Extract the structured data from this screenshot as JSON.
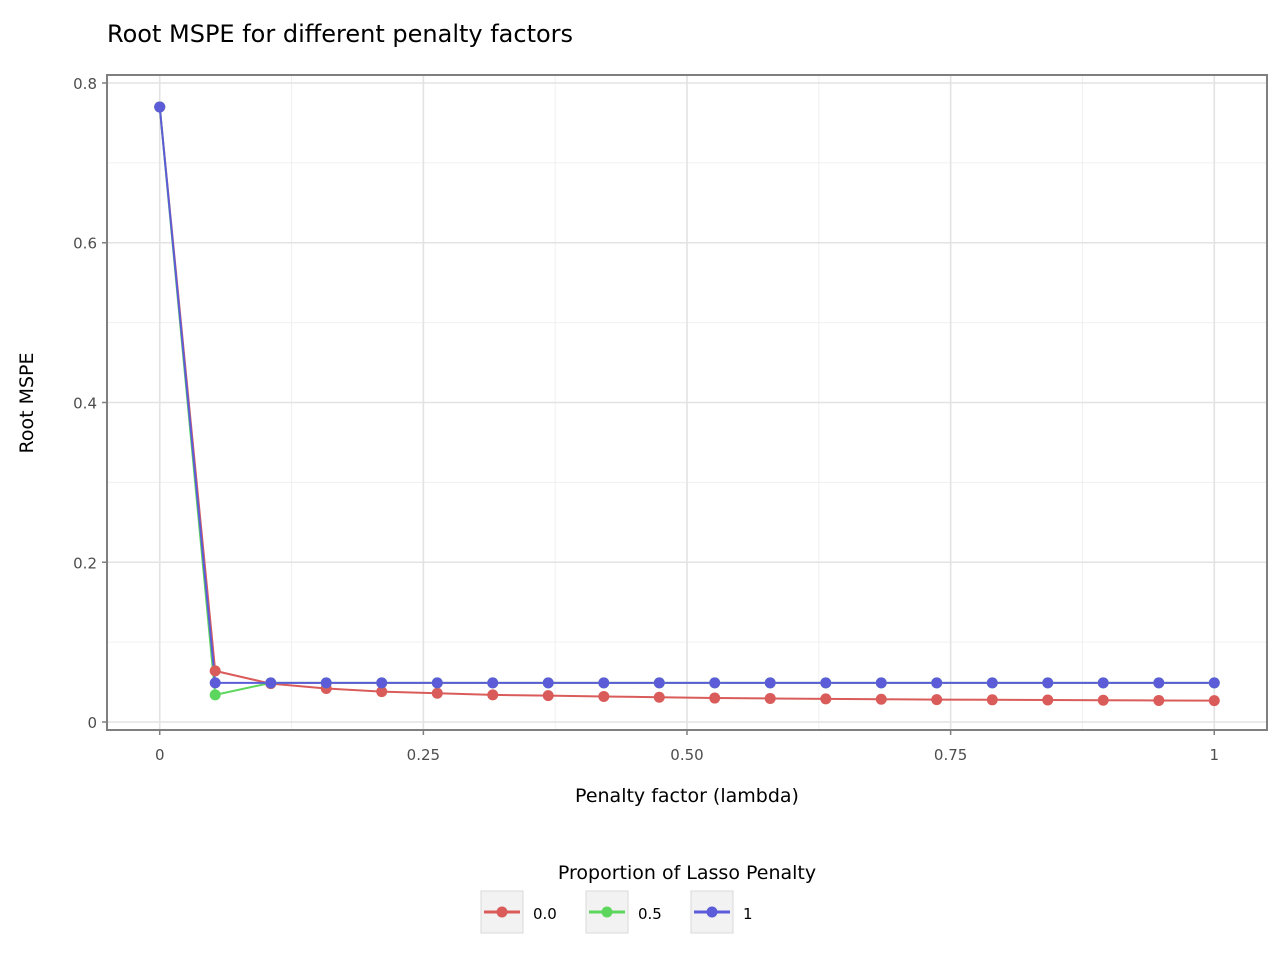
{
  "chart_data": {
    "type": "line",
    "title": "Root MSPE for different penalty factors",
    "xlabel": "Penalty factor (lambda)",
    "ylabel": "Root MSPE",
    "xlim": [
      -0.05,
      1.05
    ],
    "ylim": [
      -0.01,
      0.81
    ],
    "x_ticks": [
      0,
      0.25,
      0.5,
      0.75,
      1
    ],
    "x_tick_labels": [
      "0",
      "0.25",
      "0.50",
      "0.75",
      "1"
    ],
    "y_ticks": [
      0,
      0.2,
      0.4,
      0.6,
      0.8
    ],
    "y_tick_labels": [
      "0",
      "0.2",
      "0.4",
      "0.6",
      "0.8"
    ],
    "grid": true,
    "legend_position": "bottom",
    "legend_title": "Proportion of Lasso Penalty",
    "x": [
      0,
      0.0526,
      0.1053,
      0.1579,
      0.2105,
      0.2632,
      0.3158,
      0.3684,
      0.4211,
      0.4737,
      0.5263,
      0.5789,
      0.6316,
      0.6842,
      0.7368,
      0.7895,
      0.8421,
      0.8947,
      0.9474,
      1.0
    ],
    "series": [
      {
        "name": "0.0",
        "color": "#d95c5a",
        "values": [
          0.77,
          0.064,
          0.048,
          0.042,
          0.038,
          0.036,
          0.034,
          0.033,
          0.032,
          0.031,
          0.03,
          0.0295,
          0.029,
          0.0285,
          0.028,
          0.0278,
          0.0275,
          0.0272,
          0.027,
          0.0268
        ]
      },
      {
        "name": "0.5",
        "color": "#5cd65c",
        "values": [
          0.77,
          0.034,
          0.049,
          0.049,
          0.049,
          0.049,
          0.049,
          0.049,
          0.049,
          0.049,
          0.049,
          0.049,
          0.049,
          0.049,
          0.049,
          0.049,
          0.049,
          0.049,
          0.049,
          0.049
        ]
      },
      {
        "name": "1",
        "color": "#5c5cd9",
        "values": [
          0.77,
          0.049,
          0.049,
          0.049,
          0.049,
          0.049,
          0.049,
          0.049,
          0.049,
          0.049,
          0.049,
          0.049,
          0.049,
          0.049,
          0.049,
          0.049,
          0.049,
          0.049,
          0.049,
          0.049
        ]
      }
    ]
  }
}
